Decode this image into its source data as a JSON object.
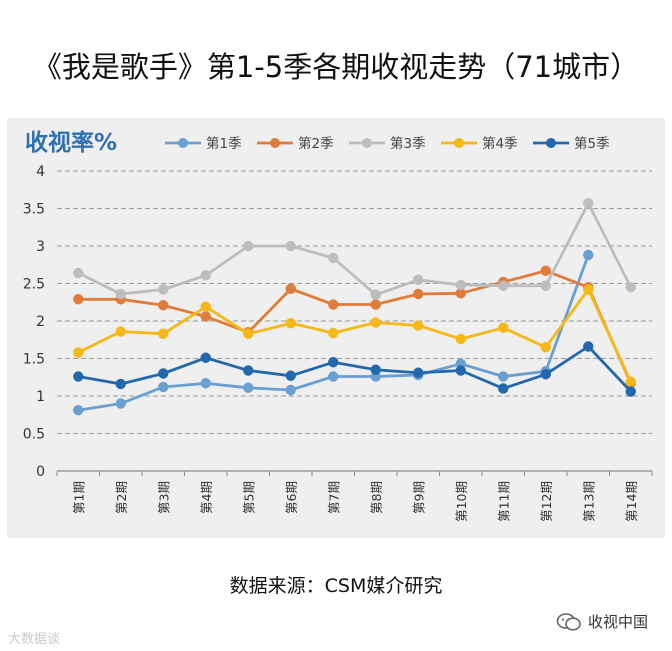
{
  "page": {
    "title": "《我是歌手》第1-5季各期收视走势（71城市）",
    "source": "数据来源：CSM媒介研究",
    "watermark_left": "大数据谈",
    "watermark_right": "收视中国"
  },
  "chart_data": {
    "type": "line",
    "ylabel": "收视率%",
    "ylim": [
      0,
      4
    ],
    "yticks": [
      "0",
      "0.5",
      "1",
      "1.5",
      "2",
      "2.5",
      "3",
      "3.5",
      "4"
    ],
    "categories": [
      "第1期",
      "第2期",
      "第3期",
      "第4期",
      "第5期",
      "第6期",
      "第7期",
      "第8期",
      "第9期",
      "第10期",
      "第11期",
      "第12期",
      "第13期",
      "第14期"
    ],
    "series": [
      {
        "name": "第1季",
        "color": "#6a9fd2",
        "values": [
          0.81,
          0.9,
          1.12,
          1.17,
          1.11,
          1.08,
          1.26,
          1.26,
          1.28,
          1.43,
          1.26,
          1.33,
          2.88,
          null
        ]
      },
      {
        "name": "第2季",
        "color": "#e07b39",
        "values": [
          2.29,
          2.29,
          2.21,
          2.06,
          1.85,
          2.43,
          2.22,
          2.22,
          2.36,
          2.37,
          2.52,
          2.67,
          2.45,
          1.17
        ]
      },
      {
        "name": "第3季",
        "color": "#bdbdbd",
        "values": [
          2.64,
          2.36,
          2.42,
          2.61,
          3.0,
          3.0,
          2.84,
          2.35,
          2.55,
          2.48,
          2.47,
          2.47,
          3.57,
          2.45
        ]
      },
      {
        "name": "第4季",
        "color": "#f6b817",
        "values": [
          1.58,
          1.86,
          1.83,
          2.19,
          1.83,
          1.97,
          1.84,
          1.98,
          1.94,
          1.76,
          1.91,
          1.65,
          2.42,
          1.19
        ]
      },
      {
        "name": "第5季",
        "color": "#2368ad",
        "values": [
          1.26,
          1.16,
          1.3,
          1.51,
          1.34,
          1.27,
          1.45,
          1.35,
          1.31,
          1.34,
          1.1,
          1.29,
          1.66,
          1.06
        ]
      }
    ]
  }
}
